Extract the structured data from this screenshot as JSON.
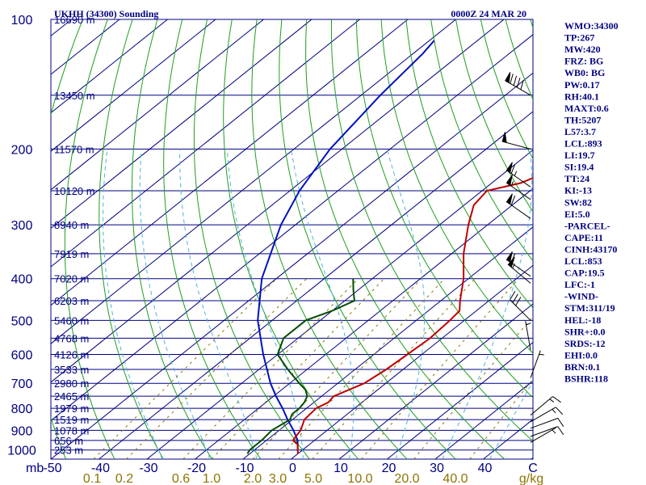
{
  "header": {
    "station": "UKHH (34300) Sounding",
    "time": "0000Z 24 MAR 20"
  },
  "chart_data": {
    "type": "skew-t",
    "pressure_axis_label": "mb",
    "pressure_levels": [
      100,
      200,
      300,
      400,
      500,
      600,
      700,
      800,
      900,
      1000
    ],
    "height_labels": [
      {
        "p": 100,
        "label": "16690 m"
      },
      {
        "p": 150,
        "label": "13450 m"
      },
      {
        "p": 200,
        "label": "11570 m"
      },
      {
        "p": 250,
        "label": "10120 m"
      },
      {
        "p": 300,
        "label": "8940 m"
      },
      {
        "p": 350,
        "label": "7919 m"
      },
      {
        "p": 400,
        "label": "7020 m"
      },
      {
        "p": 450,
        "label": "6203 m"
      },
      {
        "p": 500,
        "label": "5460 m"
      },
      {
        "p": 550,
        "label": "4768 m"
      },
      {
        "p": 600,
        "label": "4126 m"
      },
      {
        "p": 650,
        "label": "3533 m"
      },
      {
        "p": 700,
        "label": "2980 m"
      },
      {
        "p": 750,
        "label": "2465 m"
      },
      {
        "p": 800,
        "label": "1979 m"
      },
      {
        "p": 850,
        "label": "1519 m"
      },
      {
        "p": 900,
        "label": "1078 m"
      },
      {
        "p": 950,
        "label": "656 m"
      },
      {
        "p": 1000,
        "label": "253 m"
      }
    ],
    "temperature_ticks": [
      "-50",
      "-40",
      "-30",
      "-20",
      "-10",
      "0",
      "10",
      "20",
      "30",
      "40",
      "C"
    ],
    "mixing_ratio_ticks": [
      "0.1",
      "0.2",
      "0.6",
      "1.0",
      "2.0",
      "3.0",
      "5.0",
      "10.0",
      "20.0",
      "40.0",
      "g/kg"
    ],
    "temperature_profile": [
      [
        1020,
        0.0
      ],
      [
        1000,
        -1.0
      ],
      [
        970,
        -2.5
      ],
      [
        950,
        -4.5
      ],
      [
        925,
        -5.0
      ],
      [
        900,
        -5.5
      ],
      [
        875,
        -6.5
      ],
      [
        850,
        -7.5
      ],
      [
        800,
        -8.0
      ],
      [
        775,
        -7.0
      ],
      [
        750,
        -7.5
      ],
      [
        725,
        -6.0
      ],
      [
        700,
        -4.5
      ],
      [
        650,
        -3.5
      ],
      [
        600,
        -3.0
      ],
      [
        550,
        -2.5
      ],
      [
        500,
        -3.0
      ],
      [
        475,
        -3.5
      ],
      [
        450,
        -6.0
      ],
      [
        400,
        -11.0
      ],
      [
        350,
        -17.5
      ],
      [
        300,
        -24.0
      ],
      [
        270,
        -28.0
      ],
      [
        250,
        -29.0
      ],
      [
        240,
        -24.0
      ],
      [
        225,
        -21.0
      ],
      [
        200,
        -22.0
      ],
      [
        150,
        -22.0
      ],
      [
        100,
        -18.0
      ]
    ],
    "dewpoint_profile": [
      [
        1020,
        -10.5
      ],
      [
        1000,
        -11.0
      ],
      [
        950,
        -11.0
      ],
      [
        900,
        -11.5
      ],
      [
        875,
        -11.0
      ],
      [
        850,
        -10.5
      ],
      [
        825,
        -11.5
      ],
      [
        800,
        -11.5
      ],
      [
        775,
        -12.0
      ],
      [
        750,
        -13.0
      ],
      [
        725,
        -15.0
      ],
      [
        700,
        -18.0
      ],
      [
        650,
        -24.0
      ],
      [
        600,
        -30.0
      ],
      [
        550,
        -33.0
      ],
      [
        500,
        -33.0
      ],
      [
        475,
        -30.0
      ],
      [
        450,
        -28.0
      ],
      [
        425,
        -31.0
      ],
      [
        400,
        -34.0
      ]
    ],
    "parcel_profile": [
      [
        1000,
        -1.0
      ],
      [
        950,
        -3.5
      ],
      [
        900,
        -7.0
      ],
      [
        850,
        -11.0
      ],
      [
        800,
        -15.0
      ],
      [
        750,
        -19.5
      ],
      [
        700,
        -24.0
      ],
      [
        600,
        -33.0
      ],
      [
        500,
        -43.0
      ],
      [
        400,
        -53.0
      ],
      [
        300,
        -63.0
      ],
      [
        250,
        -68.0
      ],
      [
        200,
        -72.5
      ],
      [
        150,
        -76.0
      ],
      [
        120,
        -78.0
      ],
      [
        112,
        -79.0
      ]
    ],
    "wind_barbs": [
      {
        "p": 150,
        "dir": 300,
        "kt": 90
      },
      {
        "p": 200,
        "dir": 285,
        "kt": 50
      },
      {
        "p": 245,
        "dir": 305,
        "kt": 65
      },
      {
        "p": 262,
        "dir": 305,
        "kt": 55
      },
      {
        "p": 290,
        "dir": 305,
        "kt": 60
      },
      {
        "p": 395,
        "dir": 305,
        "kt": 60
      },
      {
        "p": 410,
        "dir": 310,
        "kt": 55
      },
      {
        "p": 500,
        "dir": 315,
        "kt": 30
      },
      {
        "p": 585,
        "dir": 350,
        "kt": 5
      },
      {
        "p": 680,
        "dir": 20,
        "kt": 5
      },
      {
        "p": 830,
        "dir": 50,
        "kt": 15
      },
      {
        "p": 860,
        "dir": 60,
        "kt": 15
      },
      {
        "p": 890,
        "dir": 70,
        "kt": 10
      },
      {
        "p": 930,
        "dir": 70,
        "kt": 10
      },
      {
        "p": 960,
        "dir": 60,
        "kt": 5
      }
    ]
  },
  "indices": [
    "WMO:34300",
    "TP:267",
    "MW:420",
    "FRZ: BG",
    "WB0: BG",
    "PW:0.17",
    "RH:40.1",
    "MAXT:0.6",
    "TH:5207",
    "L57:3.7",
    "LCL:893",
    "LI:19.7",
    "SI:19.4",
    "TT:24",
    "KI:-13",
    "SW:82",
    "EI:5.0",
    "-PARCEL-",
    "CAPE:11",
    "CINH:43170",
    "LCL:853",
    "CAP:19.5",
    "LFC:-1",
    "-WIND-",
    "STM:311/19",
    "HEL:-18",
    "SHR+:0.0",
    "SRDS:-12",
    "EHI:0.0",
    "BRN:0.1",
    "BSHR:118"
  ]
}
